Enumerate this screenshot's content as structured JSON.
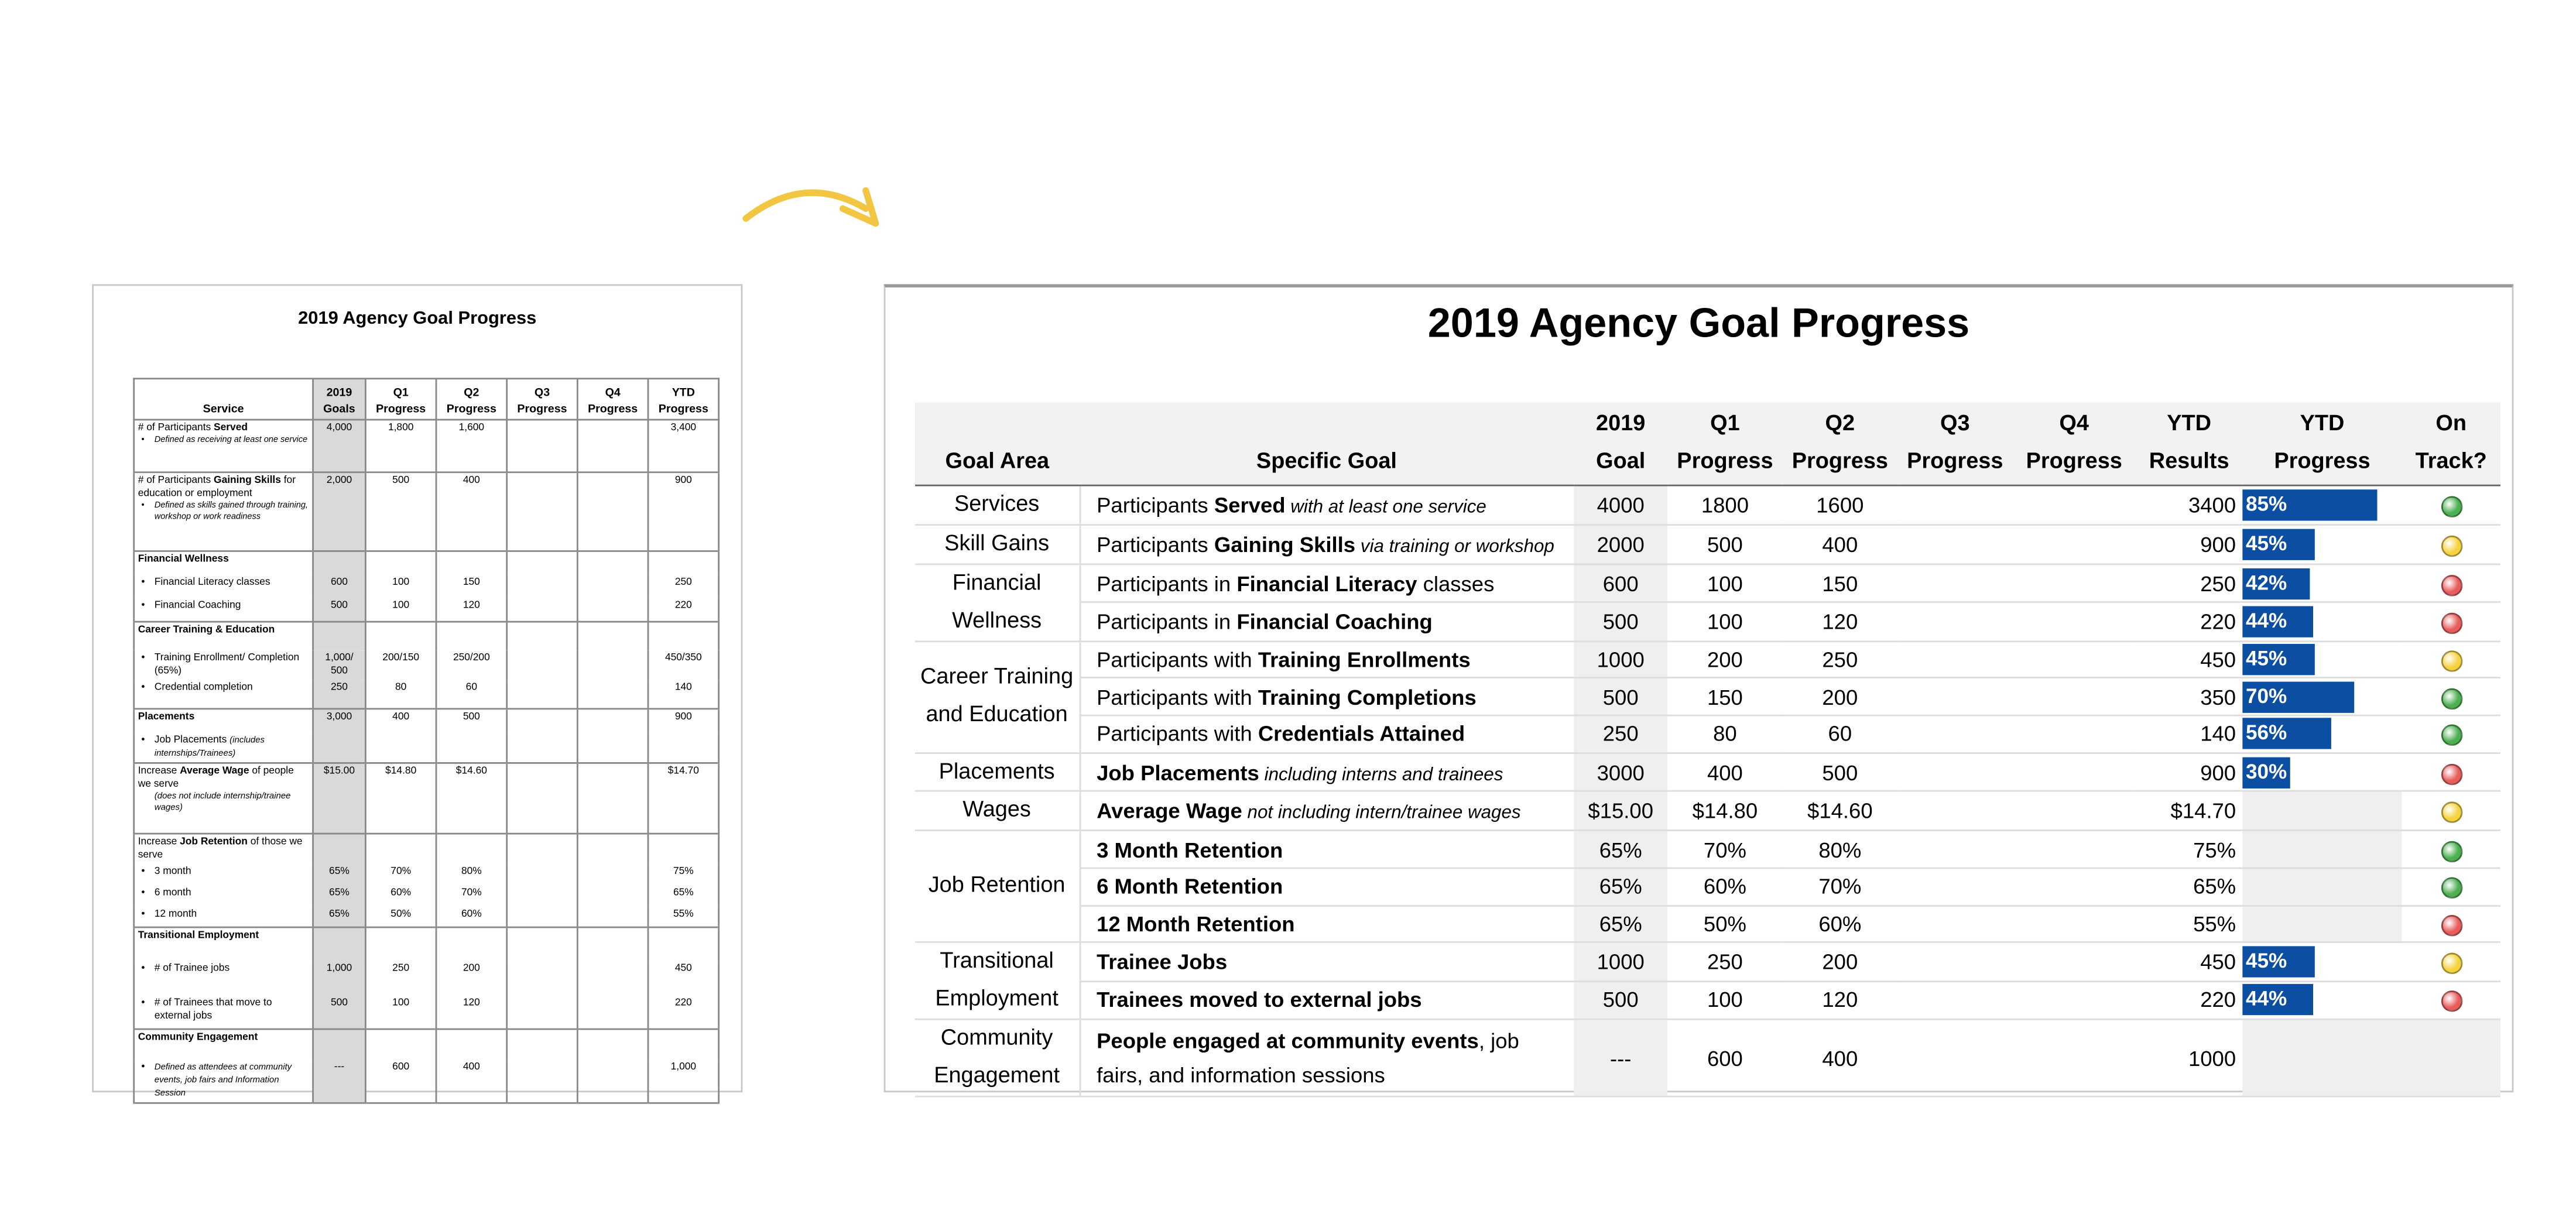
{
  "left": {
    "title": "2019 Agency Goal Progress",
    "headers": [
      "Service",
      "2019 Goals",
      "Q1 Progress",
      "Q2 Progress",
      "Q3 Progress",
      "Q4 Progress",
      "YTD Progress"
    ],
    "groups": [
      {
        "items": [
          {
            "label": [
              {
                "text": "# of Participants "
              },
              {
                "text": "Served",
                "style": "b"
              }
            ],
            "bullet_note": "Defined as receiving at least one service",
            "values": {
              "goals": "4,000",
              "q1": "1,800",
              "q2": "1,600",
              "ytd": "3,400"
            }
          }
        ]
      },
      {
        "items": [
          {
            "label": [
              {
                "text": "# of Participants "
              },
              {
                "text": "Gaining Skills",
                "style": "b"
              },
              {
                "text": " for education or employment"
              }
            ],
            "bullet_note": "Defined as skills gained through training, workshop or work readiness",
            "values": {
              "goals": "2,000",
              "q1": "500",
              "q2": "400",
              "ytd": "900"
            }
          }
        ]
      },
      {
        "items": [
          {
            "label": [
              {
                "text": "Financial Wellness",
                "style": "b"
              }
            ]
          },
          {
            "bullet": true,
            "label": [
              {
                "text": "Financial Literacy classes"
              }
            ],
            "values": {
              "goals": "600",
              "q1": "100",
              "q2": "150",
              "ytd": "250"
            }
          },
          {
            "bullet": true,
            "label": [
              {
                "text": "Financial Coaching"
              }
            ],
            "values": {
              "goals": "500",
              "q1": "100",
              "q2": "120",
              "ytd": "220"
            }
          }
        ]
      },
      {
        "items": [
          {
            "label": [
              {
                "text": "Career Training & Education",
                "style": "b"
              }
            ]
          },
          {
            "bullet": true,
            "label": [
              {
                "text": "Training Enrollment/ Completion (65%)"
              }
            ],
            "values": {
              "goals": "1,000/ 500",
              "q1": "200/150",
              "q2": "250/200",
              "ytd": "450/350"
            }
          },
          {
            "bullet": true,
            "label": [
              {
                "text": "Credential completion"
              }
            ],
            "values": {
              "goals": "250",
              "q1": "80",
              "q2": "60",
              "ytd": "140"
            }
          }
        ]
      },
      {
        "items": [
          {
            "label": [
              {
                "text": "Placements",
                "style": "b"
              }
            ],
            "values": {
              "goals": "3,000",
              "q1": "400",
              "q2": "500",
              "ytd": "900"
            }
          },
          {
            "bullet": true,
            "label": [
              {
                "text": "Job Placements "
              },
              {
                "text": "(includes internships/Trainees)",
                "style": "i"
              }
            ]
          }
        ]
      },
      {
        "items": [
          {
            "label": [
              {
                "text": "Increase "
              },
              {
                "text": "Average Wage",
                "style": "b"
              },
              {
                "text": " of people we serve"
              }
            ],
            "note": "(does not include internship/trainee wages)",
            "values": {
              "goals": "$15.00",
              "q1": "$14.80",
              "q2": "$14.60",
              "ytd": "$14.70"
            }
          }
        ]
      },
      {
        "items": [
          {
            "label": [
              {
                "text": "Increase "
              },
              {
                "text": "Job Retention",
                "style": "b"
              },
              {
                "text": " of those we serve"
              }
            ]
          },
          {
            "bullet": true,
            "label": [
              {
                "text": "3 month"
              }
            ],
            "values": {
              "goals": "65%",
              "q1": "70%",
              "q2": "80%",
              "ytd": "75%"
            }
          },
          {
            "bullet": true,
            "label": [
              {
                "text": "6 month"
              }
            ],
            "values": {
              "goals": "65%",
              "q1": "60%",
              "q2": "70%",
              "ytd": "65%"
            }
          },
          {
            "bullet": true,
            "label": [
              {
                "text": "12 month"
              }
            ],
            "values": {
              "goals": "65%",
              "q1": "50%",
              "q2": "60%",
              "ytd": "55%"
            }
          }
        ]
      },
      {
        "items": [
          {
            "label": [
              {
                "text": "Transitional Employment",
                "style": "b"
              }
            ]
          },
          {
            "bullet": true,
            "label": [
              {
                "text": "# of Trainee jobs"
              }
            ],
            "values": {
              "goals": "1,000",
              "q1": "250",
              "q2": "200",
              "ytd": "450"
            }
          },
          {
            "bullet": true,
            "label": [
              {
                "text": "# of Trainees that move to external jobs"
              }
            ],
            "values": {
              "goals": "500",
              "q1": "100",
              "q2": "120",
              "ytd": "220"
            }
          }
        ]
      },
      {
        "items": [
          {
            "label": [
              {
                "text": "Community Engagement",
                "style": "b"
              }
            ]
          },
          {
            "bullet": true,
            "label": [
              {
                "text": "Defined as attendees at community events, job fairs and Information Session",
                "style": "i"
              }
            ],
            "values": {
              "goals": "---",
              "q1": "600",
              "q2": "400",
              "ytd": "1,000"
            }
          }
        ]
      }
    ]
  },
  "right": {
    "title": "2019 Agency Goal Progress",
    "headers": [
      "Goal Area",
      "Specific Goal",
      "2019 Goal",
      "Q1 Progress",
      "Q2 Progress",
      "Q3 Progress",
      "Q4 Progress",
      "YTD Results",
      "YTD Progress",
      "On Track?"
    ],
    "groups": [
      {
        "area": "Services",
        "items": [
          {
            "label": [
              {
                "text": "Participants "
              },
              {
                "text": "Served",
                "style": "b"
              },
              {
                "text": " with at least one service",
                "style": "i"
              }
            ],
            "values": {
              "goal": "4000",
              "q1": "1800",
              "q2": "1600",
              "ytd": "3400"
            },
            "progress": {
              "value": 85,
              "label": "85%"
            },
            "on_track": "#4caf50"
          }
        ]
      },
      {
        "area": "Skill Gains",
        "items": [
          {
            "label": [
              {
                "text": "Participants "
              },
              {
                "text": "Gaining Skills",
                "style": "b"
              },
              {
                "text": " via training or workshop",
                "style": "i"
              }
            ],
            "values": {
              "goal": "2000",
              "q1": "500",
              "q2": "400",
              "ytd": "900"
            },
            "progress": {
              "value": 45,
              "label": "45%"
            },
            "on_track": "#f5d33f"
          }
        ]
      },
      {
        "area": "Financial Wellness",
        "items": [
          {
            "label": [
              {
                "text": "Participants in "
              },
              {
                "text": "Financial Literacy",
                "style": "b"
              },
              {
                "text": " classes"
              }
            ],
            "values": {
              "goal": "600",
              "q1": "100",
              "q2": "150",
              "ytd": "250"
            },
            "progress": {
              "value": 42,
              "label": "42%"
            },
            "on_track": "#e85c5c"
          },
          {
            "label": [
              {
                "text": "Participants in "
              },
              {
                "text": "Financial Coaching",
                "style": "b"
              }
            ],
            "values": {
              "goal": "500",
              "q1": "100",
              "q2": "120",
              "ytd": "220"
            },
            "progress": {
              "value": 44,
              "label": "44%"
            },
            "on_track": "#e85c5c"
          }
        ]
      },
      {
        "area": "Career Training and Education",
        "items": [
          {
            "label": [
              {
                "text": "Participants with "
              },
              {
                "text": "Training Enrollments",
                "style": "b"
              }
            ],
            "values": {
              "goal": "1000",
              "q1": "200",
              "q2": "250",
              "ytd": "450"
            },
            "progress": {
              "value": 45,
              "label": "45%"
            },
            "on_track": "#f5d33f"
          },
          {
            "label": [
              {
                "text": "Participants with "
              },
              {
                "text": "Training Completions",
                "style": "b"
              }
            ],
            "values": {
              "goal": "500",
              "q1": "150",
              "q2": "200",
              "ytd": "350"
            },
            "progress": {
              "value": 70,
              "label": "70%"
            },
            "on_track": "#4caf50"
          },
          {
            "label": [
              {
                "text": "Participants with "
              },
              {
                "text": "Credentials Attained",
                "style": "b"
              }
            ],
            "values": {
              "goal": "250",
              "q1": "80",
              "q2": "60",
              "ytd": "140"
            },
            "progress": {
              "value": 56,
              "label": "56%"
            },
            "on_track": "#4caf50"
          }
        ]
      },
      {
        "area": "Placements",
        "items": [
          {
            "label": [
              {
                "text": "Job Placements",
                "style": "b"
              },
              {
                "text": " including interns and trainees",
                "style": "i"
              }
            ],
            "values": {
              "goal": "3000",
              "q1": "400",
              "q2": "500",
              "ytd": "900"
            },
            "progress": {
              "value": 30,
              "label": "30%"
            },
            "on_track": "#e85c5c"
          }
        ]
      },
      {
        "area": "Wages",
        "items": [
          {
            "label": [
              {
                "text": "Average Wage",
                "style": "b"
              },
              {
                "text": " not including intern/trainee wages",
                "style": "i"
              }
            ],
            "values": {
              "goal": "$15.00",
              "q1": "$14.80",
              "q2": "$14.60",
              "ytd": "$14.70"
            },
            "on_track": "#f5d33f"
          }
        ]
      },
      {
        "area": "Job Retention",
        "items": [
          {
            "label": [
              {
                "text": "3 Month Retention",
                "style": "b"
              }
            ],
            "values": {
              "goal": "65%",
              "q1": "70%",
              "q2": "80%",
              "ytd": "75%"
            },
            "on_track": "#4caf50"
          },
          {
            "label": [
              {
                "text": "6 Month Retention",
                "style": "b"
              }
            ],
            "values": {
              "goal": "65%",
              "q1": "60%",
              "q2": "70%",
              "ytd": "65%"
            },
            "on_track": "#4caf50"
          },
          {
            "label": [
              {
                "text": "12 Month Retention",
                "style": "b"
              }
            ],
            "values": {
              "goal": "65%",
              "q1": "50%",
              "q2": "60%",
              "ytd": "55%"
            },
            "on_track": "#e85c5c"
          }
        ]
      },
      {
        "area": "Transitional Employment",
        "items": [
          {
            "label": [
              {
                "text": "Trainee Jobs",
                "style": "b"
              }
            ],
            "values": {
              "goal": "1000",
              "q1": "250",
              "q2": "200",
              "ytd": "450"
            },
            "progress": {
              "value": 45,
              "label": "45%"
            },
            "on_track": "#f5d33f"
          },
          {
            "label": [
              {
                "text": "Trainees moved to external jobs",
                "style": "b"
              }
            ],
            "values": {
              "goal": "500",
              "q1": "100",
              "q2": "120",
              "ytd": "220"
            },
            "progress": {
              "value": 44,
              "label": "44%"
            },
            "on_track": "#e85c5c"
          }
        ]
      },
      {
        "area": "Community Engagement",
        "items": [
          {
            "label": [
              {
                "text": "People engaged at community events",
                "style": "b"
              },
              {
                "text": ", job fairs, and information sessions"
              }
            ],
            "values": {
              "goal": "---",
              "q1": "600",
              "q2": "400",
              "ytd": "1000"
            }
          }
        ]
      }
    ]
  }
}
